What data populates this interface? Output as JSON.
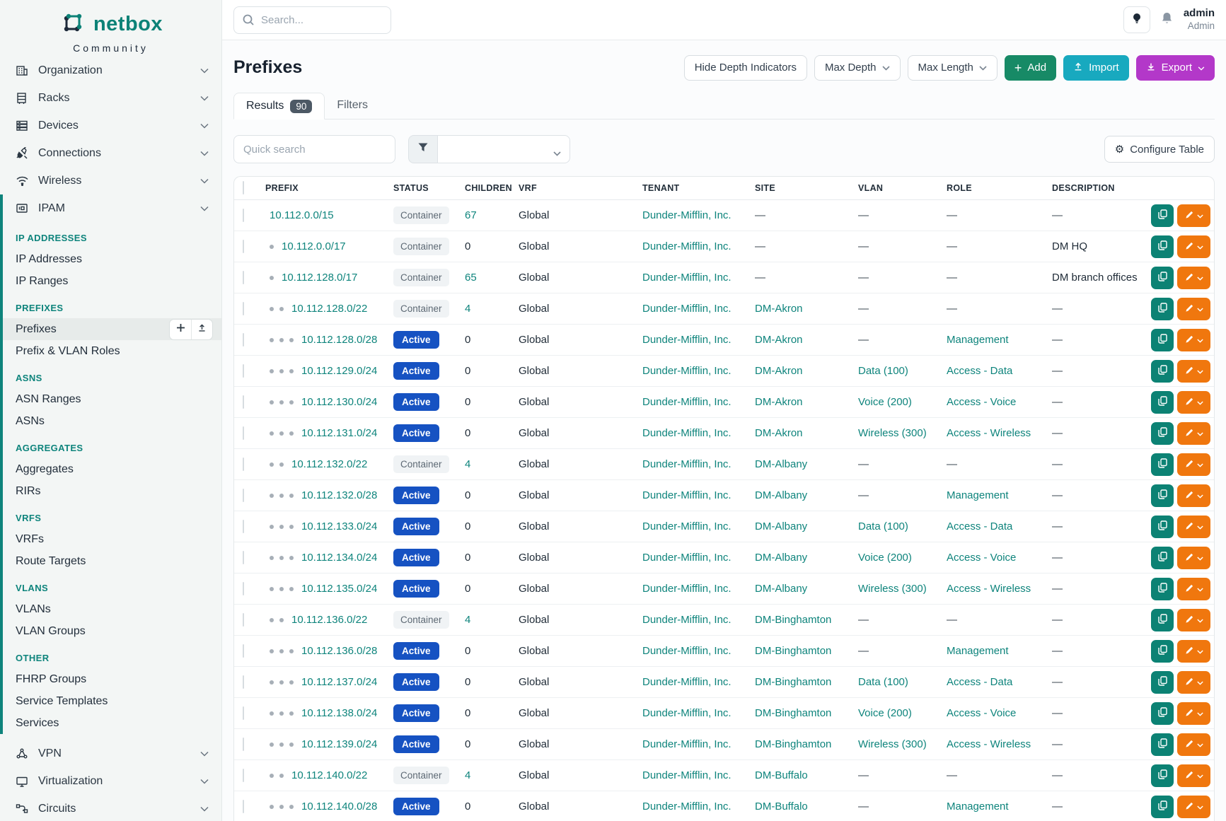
{
  "brand": {
    "name": "netbox",
    "subtitle": "Community"
  },
  "topbar": {
    "search_placeholder": "Search...",
    "username": "admin",
    "user_role": "Admin",
    "icons": [
      "lightbulb-icon",
      "bell-icon"
    ]
  },
  "sidebar": {
    "top_items": [
      {
        "label": "Organization",
        "icon": "building-icon"
      },
      {
        "label": "Racks",
        "icon": "rack-icon"
      },
      {
        "label": "Devices",
        "icon": "devices-icon"
      },
      {
        "label": "Connections",
        "icon": "plug-icon"
      },
      {
        "label": "Wireless",
        "icon": "wifi-icon"
      }
    ],
    "ipam_item": {
      "label": "IPAM",
      "icon": "ipam-icon"
    },
    "ipam_sections": [
      {
        "header": "IP ADDRESSES",
        "items": [
          {
            "label": "IP Addresses"
          },
          {
            "label": "IP Ranges"
          }
        ]
      },
      {
        "header": "PREFIXES",
        "items": [
          {
            "label": "Prefixes",
            "active": true,
            "actions": [
              "add-icon",
              "import-icon"
            ]
          },
          {
            "label": "Prefix & VLAN Roles"
          }
        ]
      },
      {
        "header": "ASNS",
        "items": [
          {
            "label": "ASN Ranges"
          },
          {
            "label": "ASNs"
          }
        ]
      },
      {
        "header": "AGGREGATES",
        "items": [
          {
            "label": "Aggregates"
          },
          {
            "label": "RIRs"
          }
        ]
      },
      {
        "header": "VRFS",
        "items": [
          {
            "label": "VRFs"
          },
          {
            "label": "Route Targets"
          }
        ]
      },
      {
        "header": "VLANS",
        "items": [
          {
            "label": "VLANs"
          },
          {
            "label": "VLAN Groups"
          }
        ]
      },
      {
        "header": "OTHER",
        "items": [
          {
            "label": "FHRP Groups"
          },
          {
            "label": "Service Templates"
          },
          {
            "label": "Services"
          }
        ]
      }
    ],
    "bottom_items": [
      {
        "label": "VPN",
        "icon": "vpn-icon"
      },
      {
        "label": "Virtualization",
        "icon": "virtualization-icon"
      },
      {
        "label": "Circuits",
        "icon": "circuits-icon"
      }
    ]
  },
  "page": {
    "title": "Prefixes",
    "controls": {
      "hide_depth": "Hide Depth Indicators",
      "max_depth": "Max Depth",
      "max_length": "Max Length",
      "add": "Add",
      "import": "Import",
      "export": "Export"
    },
    "tabs": [
      {
        "label": "Results",
        "badge": "90",
        "active": true
      },
      {
        "label": "Filters",
        "active": false
      }
    ],
    "quick_search_placeholder": "Quick search",
    "configure_table": "Configure Table"
  },
  "table": {
    "columns": [
      "PREFIX",
      "STATUS",
      "CHILDREN",
      "VRF",
      "TENANT",
      "SITE",
      "VLAN",
      "ROLE",
      "DESCRIPTION"
    ],
    "rows": [
      {
        "depth": 0,
        "prefix": "10.112.0.0/15",
        "status": "Container",
        "children": "67",
        "vrf": "Global",
        "tenant": "Dunder-Mifflin, Inc.",
        "site": "—",
        "vlan": "—",
        "role": "—",
        "description": "—"
      },
      {
        "depth": 1,
        "prefix": "10.112.0.0/17",
        "status": "Container",
        "children": "0",
        "vrf": "Global",
        "tenant": "Dunder-Mifflin, Inc.",
        "site": "—",
        "vlan": "—",
        "role": "—",
        "description": "DM HQ"
      },
      {
        "depth": 1,
        "prefix": "10.112.128.0/17",
        "status": "Container",
        "children": "65",
        "vrf": "Global",
        "tenant": "Dunder-Mifflin, Inc.",
        "site": "—",
        "vlan": "—",
        "role": "—",
        "description": "DM branch offices"
      },
      {
        "depth": 2,
        "prefix": "10.112.128.0/22",
        "status": "Container",
        "children": "4",
        "vrf": "Global",
        "tenant": "Dunder-Mifflin, Inc.",
        "site": "DM-Akron",
        "vlan": "—",
        "role": "—",
        "description": "—"
      },
      {
        "depth": 3,
        "prefix": "10.112.128.0/28",
        "status": "Active",
        "children": "0",
        "vrf": "Global",
        "tenant": "Dunder-Mifflin, Inc.",
        "site": "DM-Akron",
        "vlan": "—",
        "role": "Management",
        "description": "—"
      },
      {
        "depth": 3,
        "prefix": "10.112.129.0/24",
        "status": "Active",
        "children": "0",
        "vrf": "Global",
        "tenant": "Dunder-Mifflin, Inc.",
        "site": "DM-Akron",
        "vlan": "Data (100)",
        "role": "Access - Data",
        "description": "—"
      },
      {
        "depth": 3,
        "prefix": "10.112.130.0/24",
        "status": "Active",
        "children": "0",
        "vrf": "Global",
        "tenant": "Dunder-Mifflin, Inc.",
        "site": "DM-Akron",
        "vlan": "Voice (200)",
        "role": "Access - Voice",
        "description": "—"
      },
      {
        "depth": 3,
        "prefix": "10.112.131.0/24",
        "status": "Active",
        "children": "0",
        "vrf": "Global",
        "tenant": "Dunder-Mifflin, Inc.",
        "site": "DM-Akron",
        "vlan": "Wireless (300)",
        "role": "Access - Wireless",
        "description": "—"
      },
      {
        "depth": 2,
        "prefix": "10.112.132.0/22",
        "status": "Container",
        "children": "4",
        "vrf": "Global",
        "tenant": "Dunder-Mifflin, Inc.",
        "site": "DM-Albany",
        "vlan": "—",
        "role": "—",
        "description": "—"
      },
      {
        "depth": 3,
        "prefix": "10.112.132.0/28",
        "status": "Active",
        "children": "0",
        "vrf": "Global",
        "tenant": "Dunder-Mifflin, Inc.",
        "site": "DM-Albany",
        "vlan": "—",
        "role": "Management",
        "description": "—"
      },
      {
        "depth": 3,
        "prefix": "10.112.133.0/24",
        "status": "Active",
        "children": "0",
        "vrf": "Global",
        "tenant": "Dunder-Mifflin, Inc.",
        "site": "DM-Albany",
        "vlan": "Data (100)",
        "role": "Access - Data",
        "description": "—"
      },
      {
        "depth": 3,
        "prefix": "10.112.134.0/24",
        "status": "Active",
        "children": "0",
        "vrf": "Global",
        "tenant": "Dunder-Mifflin, Inc.",
        "site": "DM-Albany",
        "vlan": "Voice (200)",
        "role": "Access - Voice",
        "description": "—"
      },
      {
        "depth": 3,
        "prefix": "10.112.135.0/24",
        "status": "Active",
        "children": "0",
        "vrf": "Global",
        "tenant": "Dunder-Mifflin, Inc.",
        "site": "DM-Albany",
        "vlan": "Wireless (300)",
        "role": "Access - Wireless",
        "description": "—"
      },
      {
        "depth": 2,
        "prefix": "10.112.136.0/22",
        "status": "Container",
        "children": "4",
        "vrf": "Global",
        "tenant": "Dunder-Mifflin, Inc.",
        "site": "DM-Binghamton",
        "vlan": "—",
        "role": "—",
        "description": "—"
      },
      {
        "depth": 3,
        "prefix": "10.112.136.0/28",
        "status": "Active",
        "children": "0",
        "vrf": "Global",
        "tenant": "Dunder-Mifflin, Inc.",
        "site": "DM-Binghamton",
        "vlan": "—",
        "role": "Management",
        "description": "—"
      },
      {
        "depth": 3,
        "prefix": "10.112.137.0/24",
        "status": "Active",
        "children": "0",
        "vrf": "Global",
        "tenant": "Dunder-Mifflin, Inc.",
        "site": "DM-Binghamton",
        "vlan": "Data (100)",
        "role": "Access - Data",
        "description": "—"
      },
      {
        "depth": 3,
        "prefix": "10.112.138.0/24",
        "status": "Active",
        "children": "0",
        "vrf": "Global",
        "tenant": "Dunder-Mifflin, Inc.",
        "site": "DM-Binghamton",
        "vlan": "Voice (200)",
        "role": "Access - Voice",
        "description": "—"
      },
      {
        "depth": 3,
        "prefix": "10.112.139.0/24",
        "status": "Active",
        "children": "0",
        "vrf": "Global",
        "tenant": "Dunder-Mifflin, Inc.",
        "site": "DM-Binghamton",
        "vlan": "Wireless (300)",
        "role": "Access - Wireless",
        "description": "—"
      },
      {
        "depth": 2,
        "prefix": "10.112.140.0/22",
        "status": "Container",
        "children": "4",
        "vrf": "Global",
        "tenant": "Dunder-Mifflin, Inc.",
        "site": "DM-Buffalo",
        "vlan": "—",
        "role": "—",
        "description": "—"
      },
      {
        "depth": 3,
        "prefix": "10.112.140.0/28",
        "status": "Active",
        "children": "0",
        "vrf": "Global",
        "tenant": "Dunder-Mifflin, Inc.",
        "site": "DM-Buffalo",
        "vlan": "—",
        "role": "Management",
        "description": "—"
      }
    ]
  },
  "colors": {
    "brand_teal": "#0c8277",
    "link_teal": "#0e847c",
    "active_badge_blue": "#1652c2",
    "container_badge_gray": "#f0f3f5",
    "add_green": "#178a66",
    "import_cyan": "#18a9bf",
    "export_purple": "#b338c9",
    "edit_orange": "#f0770e",
    "sidebar_bg": "#f3f6f5"
  }
}
